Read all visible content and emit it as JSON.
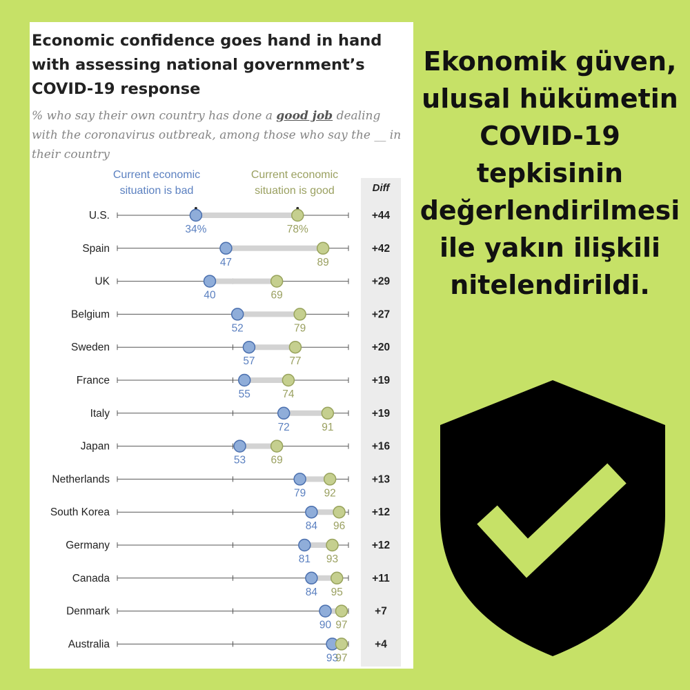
{
  "card": {
    "title": "Economic confidence goes hand in hand with assessing national government’s COVID-19 response",
    "subtitle_pre": "% who say their own country has done a ",
    "subtitle_emphasis": "good job",
    "subtitle_post": " dealing with the coronavirus outbreak, among those who say the __ in their country"
  },
  "side_text": "Ekonomik güven, ulusal hükümetin COVID-19 tepkisinin değerlendirilmesi ile yakın ilişkili nitelendirildi.",
  "colors": {
    "background": "#c6e167",
    "bad": "#8fadd9",
    "good": "#c5cf8f",
    "bad_label": "#5b80c0",
    "good_label": "#9aa060",
    "shield": "#000000",
    "check": "#c6e167"
  },
  "icons": {
    "shield": "shield-check-icon"
  },
  "chart_data": {
    "type": "dot",
    "xlim": [
      0,
      100
    ],
    "legend": {
      "bad": [
        "Current economic",
        "situation is bad"
      ],
      "good": [
        "Current economic",
        "situation is good"
      ]
    },
    "diff_header": "Diff",
    "series": [
      {
        "name": "Current economic situation is bad",
        "values": [
          34,
          47,
          40,
          52,
          57,
          55,
          72,
          53,
          79,
          84,
          81,
          84,
          90,
          93
        ]
      },
      {
        "name": "Current economic situation is good",
        "values": [
          78,
          89,
          69,
          79,
          77,
          74,
          91,
          69,
          92,
          96,
          93,
          95,
          97,
          97
        ]
      }
    ],
    "categories": [
      "U.S.",
      "Spain",
      "UK",
      "Belgium",
      "Sweden",
      "France",
      "Italy",
      "Japan",
      "Netherlands",
      "South Korea",
      "Germany",
      "Canada",
      "Denmark",
      "Australia"
    ],
    "bad_labels": [
      "34%",
      "47",
      "40",
      "52",
      "57",
      "55",
      "72",
      "53",
      "79",
      "84",
      "81",
      "84",
      "90",
      "93"
    ],
    "good_labels": [
      "78%",
      "89",
      "69",
      "79",
      "77",
      "74",
      "91",
      "69",
      "92",
      "96",
      "93",
      "95",
      "97",
      "97"
    ],
    "diffs": [
      "+44",
      "+42",
      "+29",
      "+27",
      "+20",
      "+19",
      "+19",
      "+16",
      "+13",
      "+12",
      "+12",
      "+11",
      "+7",
      "+4"
    ]
  }
}
